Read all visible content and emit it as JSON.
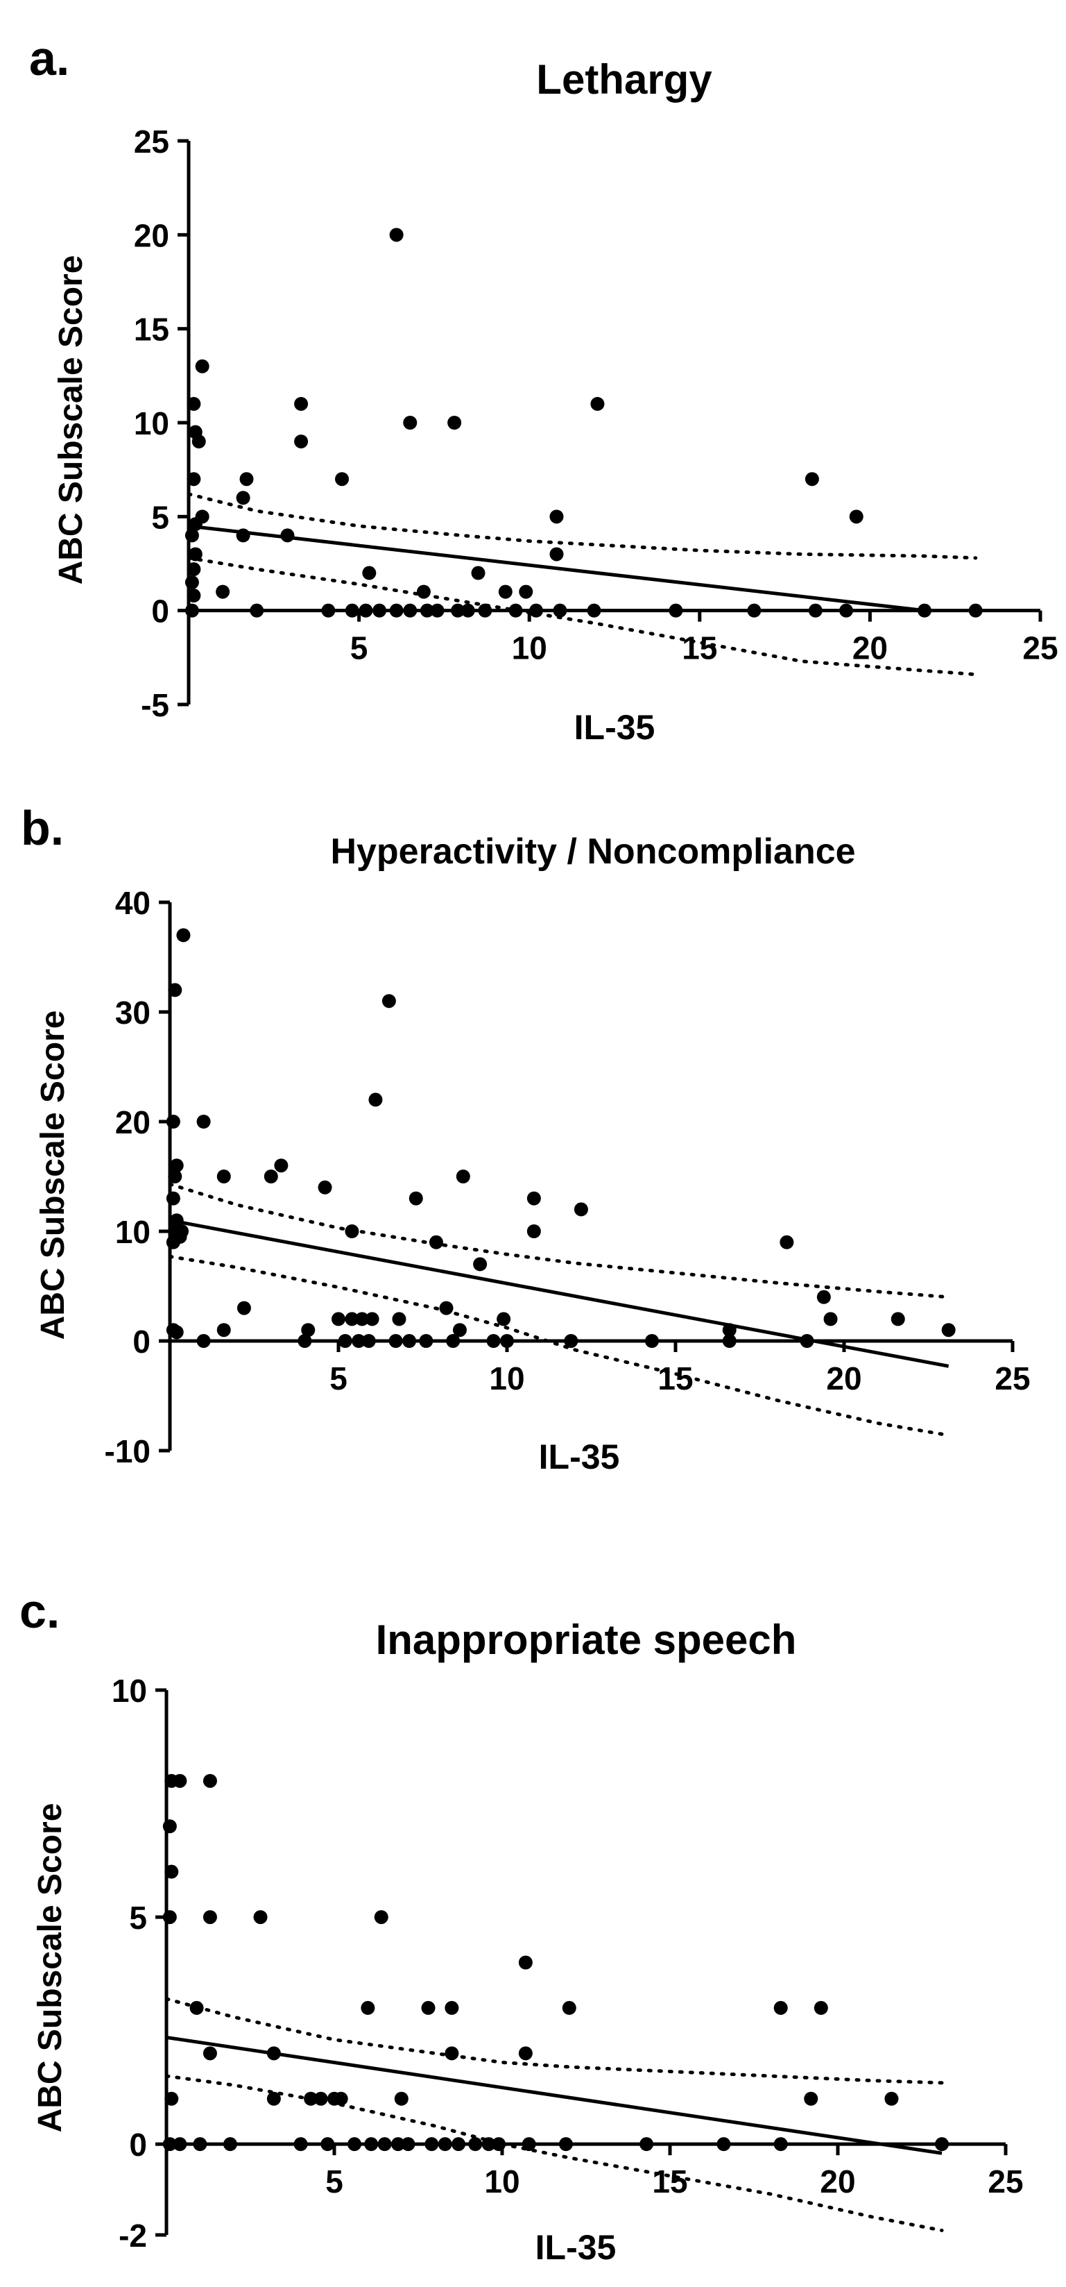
{
  "chart_data": [
    {
      "type": "scatter",
      "panel_label": "a.",
      "title": "Lethargy",
      "xlabel": "IL-35",
      "ylabel": "ABC Subscale Score",
      "xlim": [
        0,
        25
      ],
      "ylim": [
        -5,
        25
      ],
      "xticks": [
        5,
        10,
        15,
        20,
        25
      ],
      "yticks": [
        -5,
        0,
        5,
        10,
        15,
        20,
        25
      ],
      "points": [
        {
          "x": 0.1,
          "y": 0
        },
        {
          "x": 0.15,
          "y": 0.8
        },
        {
          "x": 0.1,
          "y": 1.5
        },
        {
          "x": 0.15,
          "y": 2.2
        },
        {
          "x": 0.2,
          "y": 3
        },
        {
          "x": 0.1,
          "y": 4
        },
        {
          "x": 0.2,
          "y": 4.6
        },
        {
          "x": 0.15,
          "y": 7
        },
        {
          "x": 0.2,
          "y": 9.5
        },
        {
          "x": 0.15,
          "y": 11
        },
        {
          "x": 0.4,
          "y": 13
        },
        {
          "x": 0.3,
          "y": 9
        },
        {
          "x": 0.4,
          "y": 5
        },
        {
          "x": 1.0,
          "y": 1
        },
        {
          "x": 1.6,
          "y": 4
        },
        {
          "x": 1.6,
          "y": 6
        },
        {
          "x": 1.7,
          "y": 7
        },
        {
          "x": 2.0,
          "y": 0
        },
        {
          "x": 2.9,
          "y": 4
        },
        {
          "x": 3.3,
          "y": 9
        },
        {
          "x": 3.3,
          "y": 11
        },
        {
          "x": 4.1,
          "y": 0
        },
        {
          "x": 4.5,
          "y": 7
        },
        {
          "x": 4.8,
          "y": 0
        },
        {
          "x": 5.2,
          "y": 0
        },
        {
          "x": 5.3,
          "y": 2
        },
        {
          "x": 5.6,
          "y": 0
        },
        {
          "x": 6.1,
          "y": 20
        },
        {
          "x": 6.1,
          "y": 0
        },
        {
          "x": 6.5,
          "y": 10
        },
        {
          "x": 6.5,
          "y": 0
        },
        {
          "x": 6.9,
          "y": 1
        },
        {
          "x": 7.0,
          "y": 0
        },
        {
          "x": 7.3,
          "y": 0
        },
        {
          "x": 7.8,
          "y": 10
        },
        {
          "x": 7.9,
          "y": 0
        },
        {
          "x": 8.2,
          "y": 0
        },
        {
          "x": 8.5,
          "y": 2
        },
        {
          "x": 8.7,
          "y": 0
        },
        {
          "x": 9.3,
          "y": 1
        },
        {
          "x": 9.6,
          "y": 0
        },
        {
          "x": 9.9,
          "y": 1
        },
        {
          "x": 10.2,
          "y": 0
        },
        {
          "x": 10.8,
          "y": 5
        },
        {
          "x": 10.8,
          "y": 3
        },
        {
          "x": 10.9,
          "y": 0
        },
        {
          "x": 12.0,
          "y": 11
        },
        {
          "x": 11.9,
          "y": 0
        },
        {
          "x": 14.3,
          "y": 0
        },
        {
          "x": 16.6,
          "y": 0
        },
        {
          "x": 18.3,
          "y": 7
        },
        {
          "x": 18.4,
          "y": 0
        },
        {
          "x": 19.3,
          "y": 0
        },
        {
          "x": 19.6,
          "y": 5
        },
        {
          "x": 21.6,
          "y": 0
        },
        {
          "x": 23.1,
          "y": 0
        }
      ],
      "regression": {
        "x": [
          0,
          21.6
        ],
        "y": [
          4.5,
          0
        ]
      },
      "ci_upper": {
        "x": [
          0,
          2,
          5,
          8,
          10,
          12,
          15,
          18,
          21.6,
          23.1
        ],
        "y": [
          6.2,
          5.3,
          4.5,
          4.0,
          3.7,
          3.5,
          3.2,
          3.0,
          2.9,
          2.8
        ]
      },
      "ci_lower": {
        "x": [
          0,
          2,
          5,
          8,
          10,
          12,
          15,
          18,
          21.6,
          23.1
        ],
        "y": [
          2.8,
          2.2,
          1.4,
          0.5,
          -0.1,
          -0.7,
          -1.7,
          -2.7,
          -3.2,
          -3.4
        ]
      }
    },
    {
      "type": "scatter",
      "panel_label": "b.",
      "title": "Hyperactivity / Noncompliance",
      "xlabel": "IL-35",
      "ylabel": "ABC Subscale Score",
      "xlim": [
        0,
        25
      ],
      "ylim": [
        -10,
        40
      ],
      "xticks": [
        5,
        10,
        15,
        20,
        25
      ],
      "yticks": [
        -10,
        0,
        10,
        20,
        30,
        40
      ],
      "points": [
        {
          "x": 0.1,
          "y": 1
        },
        {
          "x": 0.2,
          "y": 0.8
        },
        {
          "x": 0.1,
          "y": 9
        },
        {
          "x": 0.15,
          "y": 10
        },
        {
          "x": 0.2,
          "y": 11
        },
        {
          "x": 0.1,
          "y": 13
        },
        {
          "x": 0.15,
          "y": 15
        },
        {
          "x": 0.2,
          "y": 16
        },
        {
          "x": 0.1,
          "y": 20
        },
        {
          "x": 0.15,
          "y": 32
        },
        {
          "x": 0.4,
          "y": 37
        },
        {
          "x": 0.35,
          "y": 10
        },
        {
          "x": 0.3,
          "y": 9.5
        },
        {
          "x": 1.0,
          "y": 0
        },
        {
          "x": 1.0,
          "y": 20
        },
        {
          "x": 1.6,
          "y": 1
        },
        {
          "x": 1.6,
          "y": 15
        },
        {
          "x": 2.2,
          "y": 3
        },
        {
          "x": 3.0,
          "y": 15
        },
        {
          "x": 3.3,
          "y": 16
        },
        {
          "x": 4.0,
          "y": 0
        },
        {
          "x": 4.1,
          "y": 1
        },
        {
          "x": 4.6,
          "y": 14
        },
        {
          "x": 5.0,
          "y": 2
        },
        {
          "x": 5.2,
          "y": 0
        },
        {
          "x": 5.4,
          "y": 2
        },
        {
          "x": 5.4,
          "y": 10
        },
        {
          "x": 5.6,
          "y": 0
        },
        {
          "x": 5.7,
          "y": 2
        },
        {
          "x": 5.9,
          "y": 0
        },
        {
          "x": 6.0,
          "y": 2
        },
        {
          "x": 6.1,
          "y": 22
        },
        {
          "x": 6.5,
          "y": 31
        },
        {
          "x": 6.7,
          "y": 0
        },
        {
          "x": 6.8,
          "y": 2
        },
        {
          "x": 7.1,
          "y": 0
        },
        {
          "x": 7.3,
          "y": 13
        },
        {
          "x": 7.6,
          "y": 0
        },
        {
          "x": 7.9,
          "y": 9
        },
        {
          "x": 8.2,
          "y": 3
        },
        {
          "x": 8.4,
          "y": 0
        },
        {
          "x": 8.6,
          "y": 1
        },
        {
          "x": 8.7,
          "y": 15
        },
        {
          "x": 9.2,
          "y": 7
        },
        {
          "x": 9.6,
          "y": 0
        },
        {
          "x": 9.9,
          "y": 2
        },
        {
          "x": 10.0,
          "y": 0
        },
        {
          "x": 10.8,
          "y": 13
        },
        {
          "x": 10.8,
          "y": 10
        },
        {
          "x": 11.9,
          "y": 0
        },
        {
          "x": 12.2,
          "y": 12
        },
        {
          "x": 14.3,
          "y": 0
        },
        {
          "x": 16.6,
          "y": 1
        },
        {
          "x": 16.6,
          "y": 0
        },
        {
          "x": 18.3,
          "y": 9
        },
        {
          "x": 18.9,
          "y": 0
        },
        {
          "x": 19.4,
          "y": 4
        },
        {
          "x": 19.6,
          "y": 2
        },
        {
          "x": 21.6,
          "y": 2
        },
        {
          "x": 23.1,
          "y": 1
        }
      ],
      "regression": {
        "x": [
          0,
          23.1
        ],
        "y": [
          11,
          -2.3
        ]
      },
      "ci_upper": {
        "x": [
          0,
          2,
          5,
          8,
          10,
          12,
          15,
          18,
          21,
          23.1
        ],
        "y": [
          14.3,
          12.4,
          10.3,
          8.8,
          7.9,
          7.1,
          6.2,
          5.3,
          4.5,
          4.0
        ]
      },
      "ci_lower": {
        "x": [
          0,
          2,
          5,
          8,
          10,
          12,
          15,
          18,
          21,
          23.1
        ],
        "y": [
          7.7,
          6.7,
          4.9,
          2.9,
          1.2,
          -0.8,
          -3.0,
          -5.4,
          -7.5,
          -8.6
        ]
      }
    },
    {
      "type": "scatter",
      "panel_label": "c.",
      "title": "Inappropriate speech",
      "xlabel": "IL-35",
      "ylabel": "ABC Subscale Score",
      "xlim": [
        0,
        25
      ],
      "ylim": [
        -2,
        10
      ],
      "xticks": [
        5,
        10,
        15,
        20,
        25
      ],
      "yticks": [
        -2,
        0,
        5,
        10
      ],
      "points": [
        {
          "x": 0.1,
          "y": 0
        },
        {
          "x": 0.15,
          "y": 1
        },
        {
          "x": 0.1,
          "y": 5
        },
        {
          "x": 0.15,
          "y": 6
        },
        {
          "x": 0.1,
          "y": 7
        },
        {
          "x": 0.15,
          "y": 8
        },
        {
          "x": 0.4,
          "y": 8
        },
        {
          "x": 0.4,
          "y": 0
        },
        {
          "x": 0.9,
          "y": 3
        },
        {
          "x": 1.0,
          "y": 0
        },
        {
          "x": 1.3,
          "y": 5
        },
        {
          "x": 1.3,
          "y": 8
        },
        {
          "x": 1.3,
          "y": 2
        },
        {
          "x": 1.9,
          "y": 0
        },
        {
          "x": 2.8,
          "y": 5
        },
        {
          "x": 3.2,
          "y": 1
        },
        {
          "x": 3.2,
          "y": 2
        },
        {
          "x": 4.0,
          "y": 0
        },
        {
          "x": 4.3,
          "y": 1
        },
        {
          "x": 4.6,
          "y": 1
        },
        {
          "x": 4.8,
          "y": 0
        },
        {
          "x": 5.0,
          "y": 1
        },
        {
          "x": 5.2,
          "y": 1
        },
        {
          "x": 5.6,
          "y": 0
        },
        {
          "x": 6.0,
          "y": 3
        },
        {
          "x": 6.1,
          "y": 0
        },
        {
          "x": 6.4,
          "y": 5
        },
        {
          "x": 6.5,
          "y": 0
        },
        {
          "x": 6.9,
          "y": 0
        },
        {
          "x": 7.0,
          "y": 1
        },
        {
          "x": 7.2,
          "y": 0
        },
        {
          "x": 7.8,
          "y": 3
        },
        {
          "x": 7.9,
          "y": 0
        },
        {
          "x": 8.3,
          "y": 0
        },
        {
          "x": 8.5,
          "y": 3
        },
        {
          "x": 8.5,
          "y": 2
        },
        {
          "x": 8.7,
          "y": 0
        },
        {
          "x": 9.2,
          "y": 0
        },
        {
          "x": 9.6,
          "y": 0
        },
        {
          "x": 9.9,
          "y": 0
        },
        {
          "x": 10.7,
          "y": 4
        },
        {
          "x": 10.7,
          "y": 2
        },
        {
          "x": 10.8,
          "y": 0
        },
        {
          "x": 12.0,
          "y": 3
        },
        {
          "x": 11.9,
          "y": 0
        },
        {
          "x": 14.3,
          "y": 0
        },
        {
          "x": 16.6,
          "y": 0
        },
        {
          "x": 18.3,
          "y": 3
        },
        {
          "x": 18.3,
          "y": 0
        },
        {
          "x": 19.2,
          "y": 1
        },
        {
          "x": 19.5,
          "y": 3
        },
        {
          "x": 21.6,
          "y": 1
        },
        {
          "x": 23.1,
          "y": 0
        }
      ],
      "regression": {
        "x": [
          0,
          23.1
        ],
        "y": [
          2.35,
          -0.2
        ]
      },
      "ci_upper": {
        "x": [
          0,
          2,
          5,
          8,
          10,
          12,
          15,
          18,
          21,
          23.1
        ],
        "y": [
          3.2,
          2.8,
          2.3,
          2.0,
          1.8,
          1.7,
          1.6,
          1.5,
          1.4,
          1.35
        ]
      },
      "ci_lower": {
        "x": [
          0,
          2,
          5,
          8,
          10,
          12,
          15,
          18,
          21,
          23.1
        ],
        "y": [
          1.5,
          1.3,
          0.9,
          0.4,
          0.0,
          -0.3,
          -0.7,
          -1.1,
          -1.6,
          -1.9
        ]
      }
    }
  ]
}
